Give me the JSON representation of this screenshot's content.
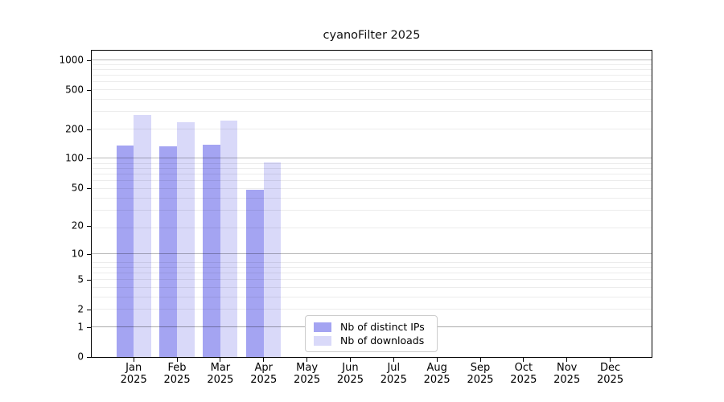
{
  "title": "cyanoFilter 2025",
  "chart_data": {
    "type": "bar",
    "title": "cyanoFilter 2025",
    "categories": [
      "Jan",
      "Feb",
      "Mar",
      "Apr",
      "May",
      "Jun",
      "Jul",
      "Aug",
      "Sep",
      "Oct",
      "Nov",
      "Dec"
    ],
    "x_year": "2025",
    "series": [
      {
        "name": "Nb of distinct IPs",
        "color": "#a4a4f2",
        "values": [
          136,
          133,
          138,
          48,
          null,
          null,
          null,
          null,
          null,
          null,
          null,
          null
        ]
      },
      {
        "name": "Nb of downloads",
        "color": "#d9d9f9",
        "values": [
          278,
          235,
          246,
          91,
          null,
          null,
          null,
          null,
          null,
          null,
          null,
          null
        ]
      }
    ],
    "y_ticks": [
      0,
      1,
      2,
      5,
      10,
      20,
      50,
      100,
      200,
      500,
      1000
    ],
    "y_scale": "log10(1+x)",
    "ylim": [
      0,
      1200
    ],
    "grid": "on",
    "legend_position": "lower-center-inside",
    "colors": {
      "grid_minor": "#ebebeb",
      "grid_major": "#c0c0c0",
      "spine": "#000000",
      "background": "#ffffff"
    }
  }
}
